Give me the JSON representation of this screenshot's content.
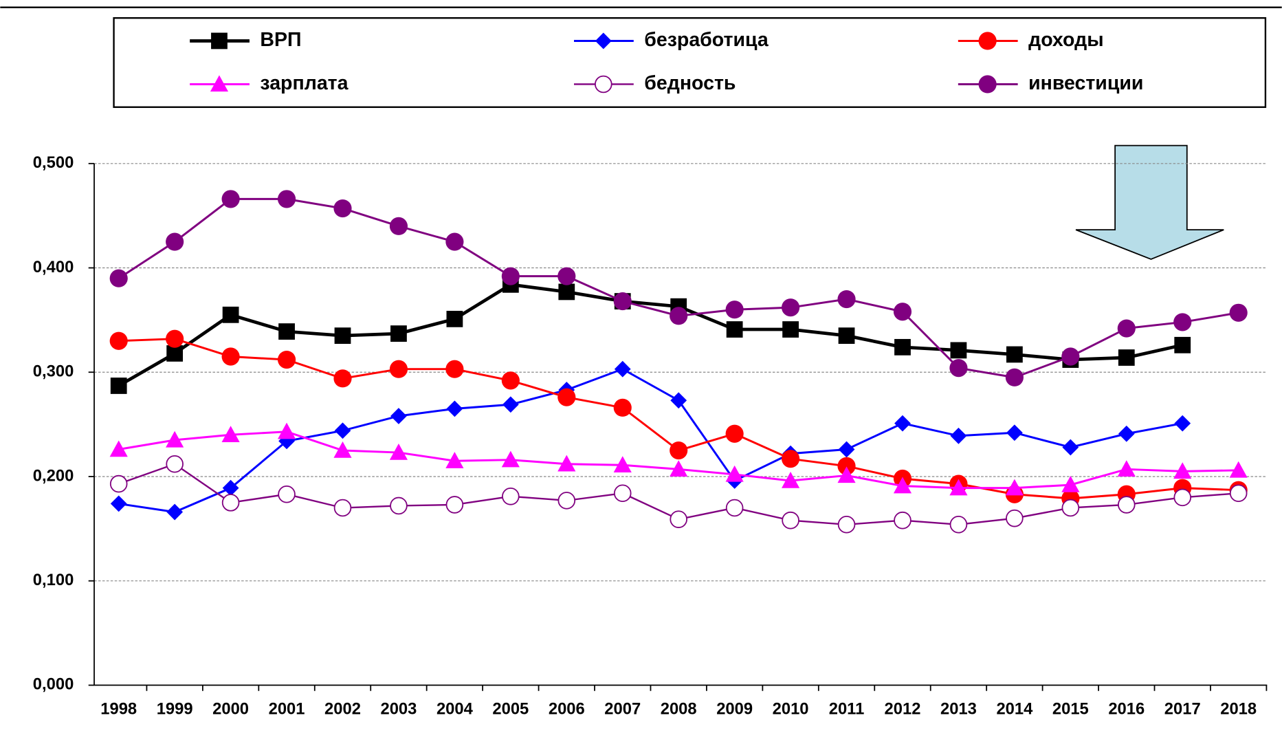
{
  "chart_data": {
    "type": "line",
    "categories": [
      "1998",
      "1999",
      "2000",
      "2001",
      "2002",
      "2003",
      "2004",
      "2005",
      "2006",
      "2007",
      "2008",
      "2009",
      "2010",
      "2011",
      "2012",
      "2013",
      "2014",
      "2015",
      "2016",
      "2017",
      "2018"
    ],
    "series": [
      {
        "name": "ВРП",
        "color": "#000000",
        "marker": "square",
        "values": [
          0.287,
          0.318,
          0.355,
          0.339,
          0.335,
          0.337,
          0.351,
          0.384,
          0.377,
          0.368,
          0.363,
          0.341,
          0.341,
          0.335,
          0.324,
          0.321,
          0.317,
          0.312,
          0.314,
          0.326,
          null
        ]
      },
      {
        "name": "безработица",
        "color": "#0000ff",
        "marker": "diamond",
        "values": [
          0.174,
          0.166,
          0.189,
          0.234,
          0.244,
          0.258,
          0.265,
          0.269,
          0.283,
          0.303,
          0.273,
          0.196,
          0.222,
          0.226,
          0.251,
          0.239,
          0.242,
          0.228,
          0.241,
          0.251,
          null
        ]
      },
      {
        "name": "доходы",
        "color": "#ff0000",
        "marker": "circle",
        "values": [
          0.33,
          0.332,
          0.315,
          0.312,
          0.294,
          0.303,
          0.303,
          0.292,
          0.276,
          0.266,
          0.225,
          0.241,
          0.217,
          0.21,
          0.198,
          0.193,
          0.183,
          0.179,
          0.183,
          0.189,
          0.187
        ]
      },
      {
        "name": "зарплата",
        "color": "#ff00ff",
        "marker": "triangle",
        "values": [
          0.226,
          0.235,
          0.24,
          0.243,
          0.225,
          0.223,
          0.215,
          0.216,
          0.212,
          0.211,
          0.207,
          0.202,
          0.196,
          0.201,
          0.191,
          0.189,
          0.189,
          0.192,
          0.207,
          0.205,
          0.206
        ]
      },
      {
        "name": "бедность",
        "color": "#800080",
        "marker": "open-circle",
        "values": [
          0.193,
          0.212,
          0.175,
          0.183,
          0.17,
          0.172,
          0.173,
          0.181,
          0.177,
          0.184,
          0.159,
          0.17,
          0.158,
          0.154,
          0.158,
          0.154,
          0.16,
          0.17,
          0.173,
          0.18,
          0.184
        ]
      },
      {
        "name": "инвестиции",
        "color": "#800080",
        "marker": "circle",
        "values": [
          0.39,
          0.425,
          0.466,
          0.466,
          0.457,
          0.44,
          0.425,
          0.392,
          0.392,
          0.368,
          0.354,
          0.36,
          0.362,
          0.37,
          0.358,
          0.304,
          0.295,
          0.315,
          0.342,
          0.348,
          0.357
        ]
      }
    ],
    "ylim": [
      0,
      0.5
    ],
    "yticks": [
      {
        "value": 0,
        "label": "0,000"
      },
      {
        "value": 0.1,
        "label": "0,100"
      },
      {
        "value": 0.2,
        "label": "0,200"
      },
      {
        "value": 0.3,
        "label": "0,300"
      },
      {
        "value": 0.4,
        "label": "0,400"
      },
      {
        "value": 0.5,
        "label": "0,500"
      }
    ],
    "grid": true
  }
}
